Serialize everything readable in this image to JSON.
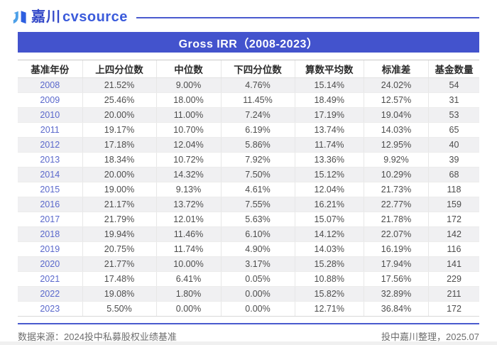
{
  "logo": {
    "brand_cn": "嘉川",
    "brand_en": "cvsource"
  },
  "title": "Gross IRR（2008-2023）",
  "table": {
    "columns": [
      "基准年份",
      "上四分位数",
      "中位数",
      "下四分位数",
      "算数平均数",
      "标准差",
      "基金数量"
    ],
    "rows": [
      [
        "2008",
        "21.52%",
        "9.00%",
        "4.76%",
        "15.14%",
        "24.02%",
        "54"
      ],
      [
        "2009",
        "25.46%",
        "18.00%",
        "11.45%",
        "18.49%",
        "12.57%",
        "31"
      ],
      [
        "2010",
        "20.00%",
        "11.00%",
        "7.24%",
        "17.19%",
        "19.04%",
        "53"
      ],
      [
        "2011",
        "19.17%",
        "10.70%",
        "6.19%",
        "13.74%",
        "14.03%",
        "65"
      ],
      [
        "2012",
        "17.18%",
        "12.04%",
        "5.86%",
        "11.74%",
        "12.95%",
        "40"
      ],
      [
        "2013",
        "18.34%",
        "10.72%",
        "7.92%",
        "13.36%",
        "9.92%",
        "39"
      ],
      [
        "2014",
        "20.00%",
        "14.32%",
        "7.50%",
        "15.12%",
        "10.29%",
        "68"
      ],
      [
        "2015",
        "19.00%",
        "9.13%",
        "4.61%",
        "12.04%",
        "21.73%",
        "118"
      ],
      [
        "2016",
        "21.17%",
        "13.72%",
        "7.55%",
        "16.21%",
        "22.77%",
        "159"
      ],
      [
        "2017",
        "21.79%",
        "12.01%",
        "5.63%",
        "15.07%",
        "21.78%",
        "172"
      ],
      [
        "2018",
        "19.94%",
        "11.46%",
        "6.10%",
        "14.12%",
        "22.07%",
        "142"
      ],
      [
        "2019",
        "20.75%",
        "11.74%",
        "4.90%",
        "14.03%",
        "16.19%",
        "116"
      ],
      [
        "2020",
        "21.77%",
        "10.00%",
        "3.17%",
        "15.28%",
        "17.94%",
        "141"
      ],
      [
        "2021",
        "17.48%",
        "6.41%",
        "0.05%",
        "10.88%",
        "17.56%",
        "229"
      ],
      [
        "2022",
        "19.08%",
        "1.80%",
        "0.00%",
        "15.82%",
        "32.89%",
        "211"
      ],
      [
        "2023",
        "5.50%",
        "0.00%",
        "0.00%",
        "12.71%",
        "36.84%",
        "172"
      ]
    ]
  },
  "footer": {
    "source": "数据来源：2024投中私募股权业绩基准",
    "credit": "投中嘉川整理，2025.07"
  },
  "colors": {
    "accent": "#4353cd",
    "rule_blue": "#4a5ace",
    "year_link": "#5a68cc",
    "logo_light_blue": "#4da0e8",
    "logo_dark_blue": "#2d5fe0",
    "row_alt_bg": "#f0f0f2"
  }
}
